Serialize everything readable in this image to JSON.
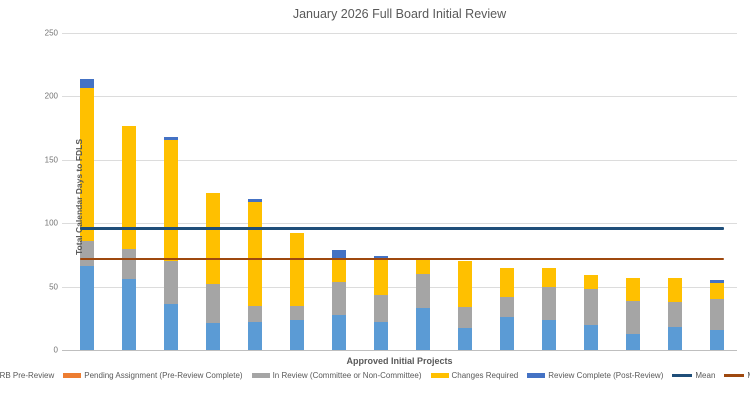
{
  "title": "January 2026 Full Board Initial Review",
  "chart_data": {
    "type": "bar",
    "stacked": true,
    "title": "January 2026 Full Board Initial Review",
    "xlabel": "Approved Initial Projects",
    "ylabel": "Total Calendar Days to FDLS",
    "ylim": [
      0,
      250
    ],
    "yticks": [
      0,
      50,
      100,
      150,
      200,
      250
    ],
    "grid": true,
    "legend_position": "bottom",
    "n_bars": 16,
    "series": [
      {
        "name": "IRB Pre-Review",
        "color": "#5B9BD5",
        "values": [
          66,
          56,
          36,
          21,
          22,
          24,
          28,
          22,
          33,
          17,
          26,
          24,
          20,
          13,
          18,
          16
        ]
      },
      {
        "name": "Pending Assignment (Pre-Review Complete)",
        "color": "#ED7D31",
        "values": [
          0,
          0,
          0,
          0,
          0,
          0,
          0,
          0,
          0,
          0,
          0,
          0,
          0,
          0,
          0,
          0
        ]
      },
      {
        "name": "In Review (Committee or Non-Committee)",
        "color": "#A5A5A5",
        "values": [
          20,
          24,
          34,
          31,
          13,
          11,
          26,
          21,
          27,
          17,
          16,
          26,
          28,
          26,
          20,
          24
        ]
      },
      {
        "name": "Changes Required",
        "color": "#FFC000",
        "values": [
          121,
          97,
          96,
          72,
          82,
          57,
          17,
          28,
          12,
          36,
          23,
          15,
          11,
          18,
          19,
          13
        ]
      },
      {
        "name": "Review Complete (Post-Review)",
        "color": "#4472C4",
        "values": [
          7,
          0,
          2,
          0,
          2,
          0,
          8,
          3,
          0,
          0,
          0,
          0,
          0,
          0,
          0,
          2
        ]
      }
    ],
    "totals": [
      214,
      177,
      168,
      124,
      119,
      92,
      79,
      74,
      72,
      70,
      65,
      65,
      59,
      57,
      57,
      55
    ],
    "lines": [
      {
        "name": "Mean",
        "color": "#1F4E79",
        "value": 96
      },
      {
        "name": "Median",
        "color": "#9E480E",
        "value": 72
      }
    ]
  }
}
